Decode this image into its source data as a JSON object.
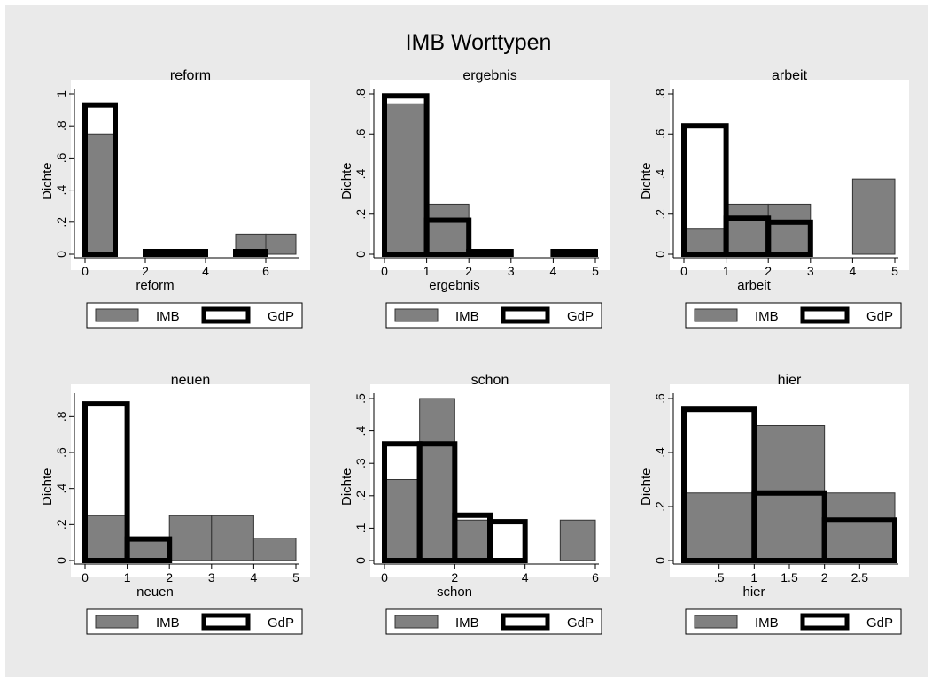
{
  "title": "IMB Worttypen",
  "colors": {
    "background": "#eaeaea",
    "plot_region": "#ffffff",
    "imb_fill": "#808080",
    "outline": "#000000"
  },
  "chart_data": [
    {
      "type": "histogram",
      "title": "reform",
      "xlabel": "reform",
      "ylabel": "Dichte",
      "xlim": [
        0,
        7
      ],
      "ylim": [
        0,
        1
      ],
      "xticks": [
        "0",
        "2",
        "4",
        "6"
      ],
      "xtick_values": [
        0,
        2,
        4,
        6
      ],
      "yticks": [
        "0",
        ".2",
        ".4",
        ".6",
        ".8",
        "1"
      ],
      "ytick_values": [
        0,
        0.2,
        0.4,
        0.6,
        0.8,
        1
      ],
      "legend": [
        "IMB",
        "GdP"
      ],
      "series": [
        {
          "name": "IMB",
          "bins": [
            [
              0,
              1,
              0.75
            ],
            [
              6,
              7,
              0.125
            ],
            [
              5,
              6,
              0.125
            ]
          ]
        },
        {
          "name": "GdP",
          "bins": [
            [
              0,
              1,
              0.93
            ],
            [
              2,
              3,
              0.01
            ],
            [
              3,
              4,
              0.01
            ],
            [
              5,
              6,
              0.01
            ]
          ]
        }
      ]
    },
    {
      "type": "histogram",
      "title": "ergebnis",
      "xlabel": "ergebnis",
      "ylabel": "Dichte",
      "xlim": [
        0,
        5
      ],
      "ylim": [
        0,
        0.8
      ],
      "xticks": [
        "0",
        "1",
        "2",
        "3",
        "4",
        "5"
      ],
      "xtick_values": [
        0,
        1,
        2,
        3,
        4,
        5
      ],
      "yticks": [
        "0",
        ".2",
        ".4",
        ".6",
        ".8"
      ],
      "ytick_values": [
        0,
        0.2,
        0.4,
        0.6,
        0.8
      ],
      "legend": [
        "IMB",
        "GdP"
      ],
      "series": [
        {
          "name": "IMB",
          "bins": [
            [
              0,
              1,
              0.75
            ],
            [
              1,
              2,
              0.25
            ]
          ]
        },
        {
          "name": "GdP",
          "bins": [
            [
              0,
              1,
              0.79
            ],
            [
              1,
              2,
              0.17
            ],
            [
              2,
              3,
              0.01
            ],
            [
              4,
              5,
              0.01
            ]
          ]
        }
      ]
    },
    {
      "type": "histogram",
      "title": "arbeit",
      "xlabel": "arbeit",
      "ylabel": "Dichte",
      "xlim": [
        0,
        5
      ],
      "ylim": [
        0,
        0.8
      ],
      "xticks": [
        "0",
        "1",
        "2",
        "3",
        "4",
        "5"
      ],
      "xtick_values": [
        0,
        1,
        2,
        3,
        4,
        5
      ],
      "yticks": [
        "0",
        ".2",
        ".4",
        ".6",
        ".8"
      ],
      "ytick_values": [
        0,
        0.2,
        0.4,
        0.6,
        0.8
      ],
      "legend": [
        "IMB",
        "GdP"
      ],
      "series": [
        {
          "name": "IMB",
          "bins": [
            [
              0,
              1,
              0.125
            ],
            [
              1,
              2,
              0.25
            ],
            [
              2,
              3,
              0.25
            ],
            [
              4,
              5,
              0.375
            ]
          ]
        },
        {
          "name": "GdP",
          "bins": [
            [
              0,
              1,
              0.64
            ],
            [
              1,
              2,
              0.18
            ],
            [
              2,
              3,
              0.16
            ]
          ]
        }
      ]
    },
    {
      "type": "histogram",
      "title": "neuen",
      "xlabel": "neuen",
      "ylabel": "Dichte",
      "xlim": [
        0,
        5
      ],
      "ylim": [
        0,
        0.9
      ],
      "xticks": [
        "0",
        "1",
        "2",
        "3",
        "4",
        "5"
      ],
      "xtick_values": [
        0,
        1,
        2,
        3,
        4,
        5
      ],
      "yticks": [
        "0",
        ".2",
        ".4",
        ".6",
        ".8"
      ],
      "ytick_values": [
        0,
        0.2,
        0.4,
        0.6,
        0.8
      ],
      "legend": [
        "IMB",
        "GdP"
      ],
      "series": [
        {
          "name": "IMB",
          "bins": [
            [
              0,
              1,
              0.25
            ],
            [
              1,
              2,
              0.125
            ],
            [
              2,
              3,
              0.25
            ],
            [
              3,
              4,
              0.25
            ],
            [
              4,
              5,
              0.125
            ]
          ]
        },
        {
          "name": "GdP",
          "bins": [
            [
              0,
              1,
              0.87
            ],
            [
              1,
              2,
              0.12
            ]
          ]
        }
      ]
    },
    {
      "type": "histogram",
      "title": "schon",
      "xlabel": "schon",
      "ylabel": "Dichte",
      "xlim": [
        0,
        6
      ],
      "ylim": [
        0,
        0.5
      ],
      "xticks": [
        "0",
        "2",
        "4",
        "6"
      ],
      "xtick_values": [
        0,
        2,
        4,
        6
      ],
      "yticks": [
        "0",
        ".1",
        ".2",
        ".3",
        ".4",
        ".5"
      ],
      "ytick_values": [
        0,
        0.1,
        0.2,
        0.3,
        0.4,
        0.5
      ],
      "legend": [
        "IMB",
        "GdP"
      ],
      "series": [
        {
          "name": "IMB",
          "bins": [
            [
              0,
              1,
              0.25
            ],
            [
              1,
              2,
              0.5
            ],
            [
              2,
              3,
              0.125
            ],
            [
              5,
              6,
              0.125
            ]
          ]
        },
        {
          "name": "GdP",
          "bins": [
            [
              0,
              1,
              0.36
            ],
            [
              1,
              2,
              0.36
            ],
            [
              2,
              3,
              0.14
            ],
            [
              3,
              4,
              0.12
            ]
          ]
        }
      ]
    },
    {
      "type": "histogram",
      "title": "hier",
      "xlabel": "hier",
      "ylabel": "Dichte",
      "xlim": [
        0,
        3
      ],
      "ylim": [
        0,
        0.6
      ],
      "xticks": [
        ".5",
        "1",
        "1.5",
        "2",
        "2.5"
      ],
      "xtick_values": [
        0.5,
        1,
        1.5,
        2,
        2.5
      ],
      "yticks": [
        "0",
        ".2",
        ".4",
        ".6"
      ],
      "ytick_values": [
        0,
        0.2,
        0.4,
        0.6
      ],
      "legend": [
        "IMB",
        "GdP"
      ],
      "series": [
        {
          "name": "IMB",
          "bins": [
            [
              0,
              1,
              0.25
            ],
            [
              1,
              2,
              0.5
            ],
            [
              2,
              3,
              0.25
            ]
          ]
        },
        {
          "name": "GdP",
          "bins": [
            [
              0,
              1,
              0.56
            ],
            [
              1,
              2,
              0.25
            ],
            [
              2,
              3,
              0.15
            ]
          ]
        }
      ]
    }
  ]
}
